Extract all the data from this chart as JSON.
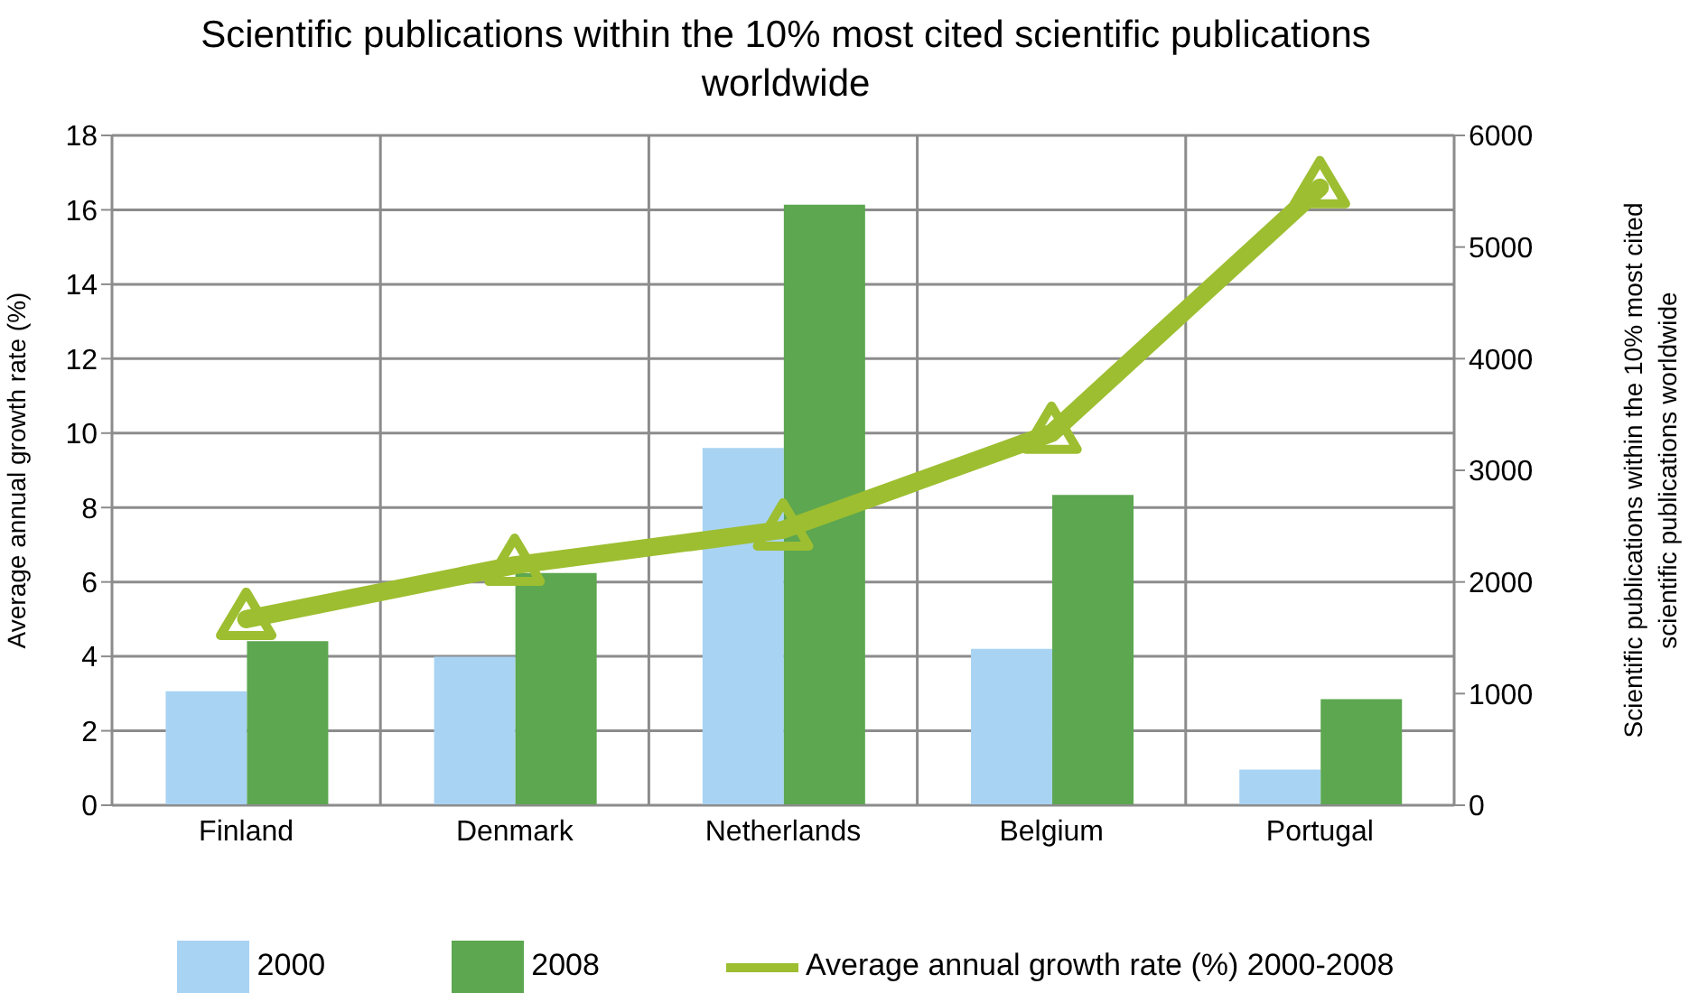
{
  "chart_data": {
    "type": "bar",
    "title": "Scientific publications within the 10% most cited scientific publications worldwide",
    "ylabel": "Average annual growth rate (%)",
    "y2label": "Scientific publications within the 10% most cited scientific publications worldwide",
    "categories": [
      "Finland",
      "Denmark",
      "Netherlands",
      "Belgium",
      "Portugal"
    ],
    "series": [
      {
        "name": "2000",
        "color": "#a9d3f3",
        "axis": "y2",
        "values": [
          1020,
          1330,
          3200,
          1400,
          320
        ]
      },
      {
        "name": "2008",
        "color": "#5ca750",
        "axis": "y2",
        "values": [
          1470,
          2080,
          5380,
          2780,
          950
        ]
      },
      {
        "name": "Average annual growth rate (%) 2000-2008",
        "type": "line",
        "color": "#9dbe30",
        "marker": "triangle",
        "values": [
          5.0,
          6.45,
          7.4,
          10.0,
          16.6
        ]
      }
    ],
    "ylim": [
      0,
      18
    ],
    "yticks": [
      0,
      2,
      4,
      6,
      8,
      10,
      12,
      14,
      16,
      18
    ],
    "y2lim": [
      0,
      6000
    ],
    "y2ticks": [
      0,
      1000,
      2000,
      3000,
      4000,
      5000,
      6000
    ],
    "grid": true,
    "legend": "bottom"
  }
}
